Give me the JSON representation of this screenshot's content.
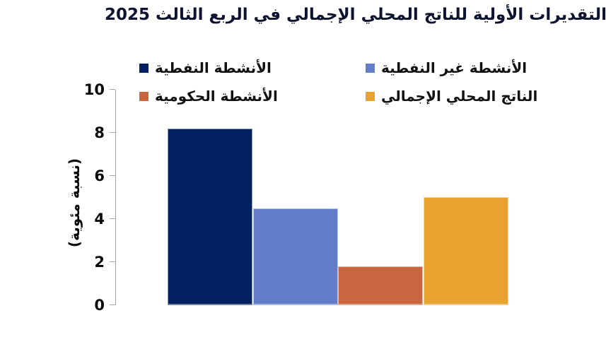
{
  "chart_data": {
    "type": "bar",
    "title": "التقديرات الأولية للناتج المحلي الإجمالي في الربع الثالث 2025",
    "xlabel": "",
    "ylabel": "(نسبة مئوية)",
    "ylim": [
      0,
      10
    ],
    "yticks": [
      0,
      2,
      4,
      6,
      8,
      10
    ],
    "grid": false,
    "legend_position": "top",
    "legend_layout": "two-columns",
    "series": [
      {
        "name": "الأنشطة النفطية",
        "value": 8.2,
        "color": "#00205f"
      },
      {
        "name": "الأنشطة غير النفطية",
        "value": 4.5,
        "color": "#637dc9"
      },
      {
        "name": "الأنشطة الحكومية",
        "value": 1.8,
        "color": "#c9653f"
      },
      {
        "name": "الناتج المحلي الإجمالي",
        "value": 5.0,
        "color": "#e7a22f"
      }
    ],
    "axis_color": "#a6a6a6",
    "title_color": "#0d1330",
    "background_color": "#ffffff"
  }
}
